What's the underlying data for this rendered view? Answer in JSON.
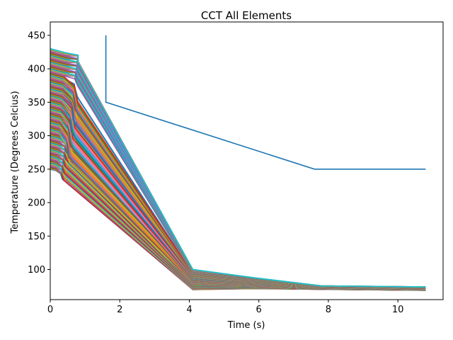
{
  "chart_data": {
    "type": "line",
    "title": "CCT All Elements",
    "xlabel": "Time (s)",
    "ylabel": "Temperature (Degrees Celcius)",
    "xlim": [
      0,
      11.3
    ],
    "ylim": [
      55,
      470
    ],
    "xticks": [
      0,
      2,
      4,
      6,
      8,
      10
    ],
    "yticks": [
      100,
      150,
      200,
      250,
      300,
      350,
      400,
      450
    ],
    "grid": false,
    "legend": "none",
    "palette": [
      "#1f77b4",
      "#ff7f0e",
      "#2ca02c",
      "#d62728",
      "#9467bd",
      "#8c564b",
      "#e377c2",
      "#7f7f7f",
      "#bcbd22",
      "#17becf"
    ],
    "reference_series": {
      "color": "#1f77b4",
      "x": [
        1.6,
        1.6,
        7.6,
        10.8
      ],
      "y": [
        450,
        350,
        250,
        250
      ]
    },
    "element_curves": {
      "count": 180,
      "start_temp_range": [
        250,
        430
      ],
      "plateau_end_time_range": [
        0.3,
        0.8
      ],
      "cooled_time": 4.1,
      "cooled_temp_range": [
        70,
        100
      ],
      "end_time": 10.8,
      "end_temp_range": [
        69,
        74
      ]
    }
  }
}
